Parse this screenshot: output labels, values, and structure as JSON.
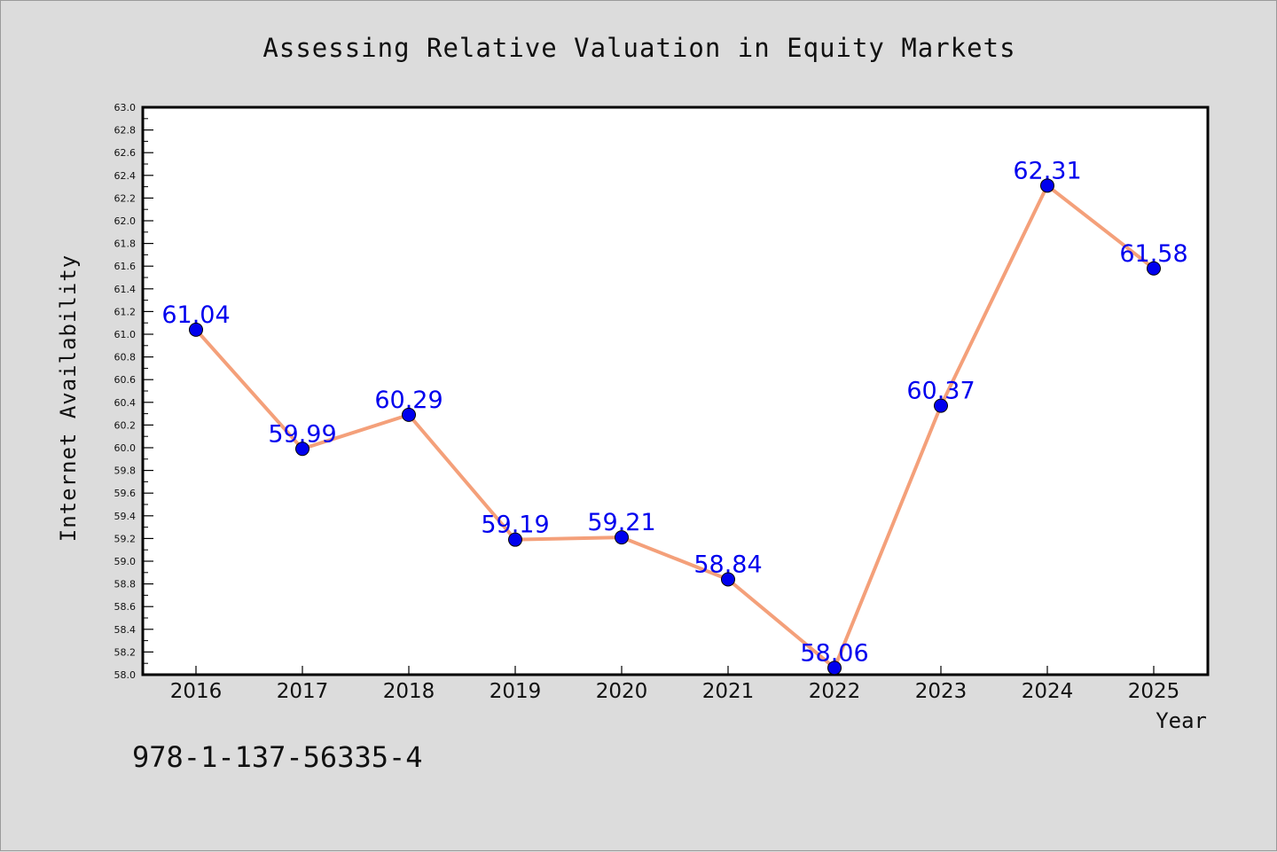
{
  "chart_data": {
    "type": "line",
    "title": "Assessing Relative Valuation in Equity Markets",
    "xlabel": "Year",
    "ylabel": "Internet Availability",
    "categories": [
      "2016",
      "2017",
      "2018",
      "2019",
      "2020",
      "2021",
      "2022",
      "2023",
      "2024",
      "2025"
    ],
    "series": [
      {
        "values": [
          61.04,
          59.99,
          60.29,
          59.19,
          59.21,
          58.84,
          58.06,
          60.37,
          62.31,
          61.58
        ],
        "data_labels": [
          "61.04",
          "59.99",
          "60.29",
          "59.19",
          "59.21",
          "58.84",
          "58.06",
          "60.37",
          "62.31",
          "61.58"
        ]
      }
    ],
    "ylim": [
      58.0,
      63.0
    ],
    "yticks": [
      "58.0",
      "58.2",
      "58.4",
      "58.6",
      "58.8",
      "59.0",
      "59.2",
      "59.4",
      "59.6",
      "59.8",
      "60.0",
      "60.2",
      "60.4",
      "60.6",
      "60.8",
      "61.0",
      "61.2",
      "61.4",
      "61.6",
      "61.8",
      "62.0",
      "62.2",
      "62.4",
      "62.6",
      "62.8",
      "63.0"
    ],
    "grid": false,
    "legend": "none",
    "colors": {
      "line": "#f4a07a",
      "marker": "#0000ee",
      "label": "#0000ee",
      "background": "#dcdcdc",
      "plot_background": "#ffffff"
    }
  },
  "annotation": "978-1-137-56335-4"
}
